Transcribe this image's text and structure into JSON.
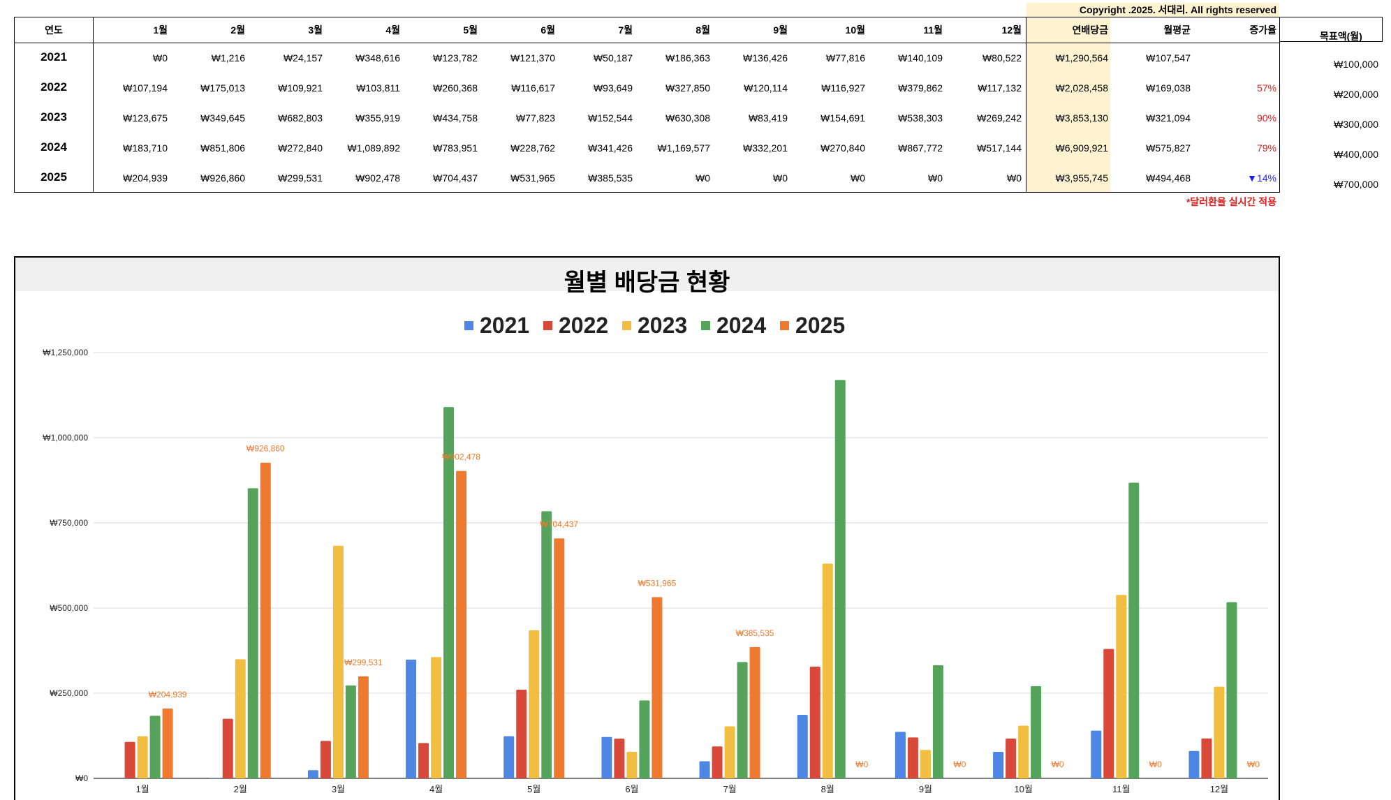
{
  "copyright": "Copyright .2025. 서대리. All rights reserved",
  "table": {
    "headers": [
      "연도",
      "1월",
      "2월",
      "3월",
      "4월",
      "5월",
      "6월",
      "7월",
      "8월",
      "9월",
      "10월",
      "11월",
      "12월",
      "연배당금",
      "월평균",
      "증가율"
    ],
    "rows": [
      {
        "year": "2021",
        "months": [
          "₩0",
          "₩1,216",
          "₩24,157",
          "₩348,616",
          "₩123,782",
          "₩121,370",
          "₩50,187",
          "₩186,363",
          "₩136,426",
          "₩77,816",
          "₩140,109",
          "₩80,522"
        ],
        "annual": "₩1,290,564",
        "avg": "₩107,547",
        "growth": ""
      },
      {
        "year": "2022",
        "months": [
          "₩107,194",
          "₩175,013",
          "₩109,921",
          "₩103,811",
          "₩260,368",
          "₩116,617",
          "₩93,649",
          "₩327,850",
          "₩120,114",
          "₩116,927",
          "₩379,862",
          "₩117,132"
        ],
        "annual": "₩2,028,458",
        "avg": "₩169,038",
        "growth": "57%"
      },
      {
        "year": "2023",
        "months": [
          "₩123,675",
          "₩349,645",
          "₩682,803",
          "₩355,919",
          "₩434,758",
          "₩77,823",
          "₩152,544",
          "₩630,308",
          "₩83,419",
          "₩154,691",
          "₩538,303",
          "₩269,242"
        ],
        "annual": "₩3,853,130",
        "avg": "₩321,094",
        "growth": "90%"
      },
      {
        "year": "2024",
        "months": [
          "₩183,710",
          "₩851,806",
          "₩272,840",
          "₩1,089,892",
          "₩783,951",
          "₩228,762",
          "₩341,426",
          "₩1,169,577",
          "₩332,201",
          "₩270,840",
          "₩867,772",
          "₩517,144"
        ],
        "annual": "₩6,909,921",
        "avg": "₩575,827",
        "growth": "79%"
      },
      {
        "year": "2025",
        "months": [
          "₩204,939",
          "₩926,860",
          "₩299,531",
          "₩902,478",
          "₩704,437",
          "₩531,965",
          "₩385,535",
          "₩0",
          "₩0",
          "₩0",
          "₩0",
          "₩0"
        ],
        "annual": "₩3,955,745",
        "avg": "₩494,468",
        "growth": "▼14%"
      }
    ],
    "note": "*달러환율 실시간 적용"
  },
  "target": {
    "title": "목표액(월)",
    "values": [
      "₩100,000",
      "₩200,000",
      "₩300,000",
      "₩400,000",
      "₩700,000"
    ]
  },
  "chart_title": "월별 배당금 현황",
  "colors": {
    "2021": "#4e86e4",
    "2022": "#d9493a",
    "2023": "#f2be42",
    "2024": "#56a35c",
    "2025": "#ee7a30",
    "highlight": "#fdf3d0"
  },
  "chart_data": {
    "type": "bar",
    "title": "월별 배당금 현황",
    "categories": [
      "1월",
      "2월",
      "3월",
      "4월",
      "5월",
      "6월",
      "7월",
      "8월",
      "9월",
      "10월",
      "11월",
      "12월"
    ],
    "ylim": [
      0,
      1250000
    ],
    "yticks": [
      "₩0",
      "₩250,000",
      "₩500,000",
      "₩750,000",
      "₩1,000,000",
      "₩1,250,000"
    ],
    "ytick_values": [
      0,
      250000,
      500000,
      750000,
      1000000,
      1250000
    ],
    "legend_position": "top-center",
    "grid": true,
    "series": [
      {
        "name": "2021",
        "values": [
          0,
          1216,
          24157,
          348616,
          123782,
          121370,
          50187,
          186363,
          136426,
          77816,
          140109,
          80522
        ]
      },
      {
        "name": "2022",
        "values": [
          107194,
          175013,
          109921,
          103811,
          260368,
          116617,
          93649,
          327850,
          120114,
          116927,
          379862,
          117132
        ]
      },
      {
        "name": "2023",
        "values": [
          123675,
          349645,
          682803,
          355919,
          434758,
          77823,
          152544,
          630308,
          83419,
          154691,
          538303,
          269242
        ]
      },
      {
        "name": "2024",
        "values": [
          183710,
          851806,
          272840,
          1089892,
          783951,
          228762,
          341426,
          1169577,
          332201,
          270840,
          867772,
          517144
        ]
      },
      {
        "name": "2025",
        "values": [
          204939,
          926860,
          299531,
          902478,
          704437,
          531965,
          385535,
          0,
          0,
          0,
          0,
          0
        ]
      }
    ],
    "data_labels_series": "2025",
    "data_labels": [
      "₩204,939",
      "₩926,860",
      "₩299,531",
      "₩902,478",
      "₩704,437",
      "₩531,965",
      "₩385,535",
      "₩0",
      "₩0",
      "₩0",
      "₩0",
      "₩0"
    ]
  }
}
